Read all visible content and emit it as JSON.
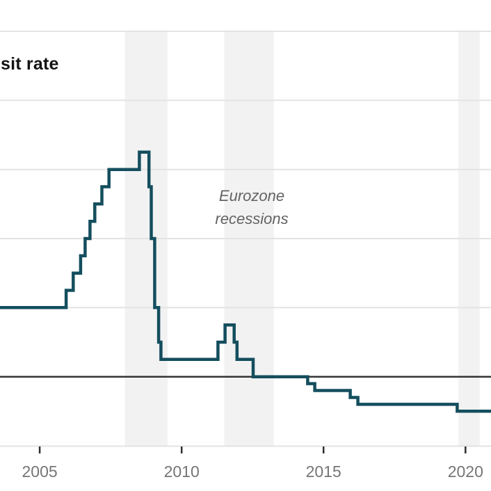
{
  "header": {
    "title_visible": "sit rate"
  },
  "colors": {
    "line": "#144e5e",
    "recession_band": "#f2f2f2",
    "gridline": "#e3e3e3",
    "zero_line": "#333333",
    "axis_line": "#e3e3e3",
    "tick": "#2e2e2e",
    "tick_label": "#757575",
    "annotation_text": "#636363",
    "title_text": "#121212",
    "background": "#ffffff"
  },
  "chart_data": {
    "type": "line",
    "line_style": "step-after",
    "unit": "percent",
    "x_axis": {
      "range": [
        2003.6,
        2020.9
      ],
      "ticks": [
        2005,
        2010,
        2015,
        2020
      ],
      "tick_labels": [
        "2005",
        "2010",
        "2015",
        "2020"
      ]
    },
    "y_axis": {
      "range": [
        -1.0,
        5.0
      ],
      "gridlines": [
        1,
        2,
        3,
        4,
        5
      ],
      "zero_line": 0,
      "grid": true
    },
    "series": [
      {
        "name": "deposit rate",
        "points": [
          [
            2003.6,
            1.0
          ],
          [
            2005.93,
            1.25
          ],
          [
            2006.18,
            1.5
          ],
          [
            2006.44,
            1.75
          ],
          [
            2006.6,
            2.0
          ],
          [
            2006.77,
            2.25
          ],
          [
            2006.94,
            2.5
          ],
          [
            2007.19,
            2.75
          ],
          [
            2007.44,
            3.0
          ],
          [
            2008.51,
            3.25
          ],
          [
            2008.85,
            2.75
          ],
          [
            2008.93,
            2.0
          ],
          [
            2009.05,
            1.0
          ],
          [
            2009.19,
            0.5
          ],
          [
            2009.27,
            0.25
          ],
          [
            2011.28,
            0.5
          ],
          [
            2011.53,
            0.75
          ],
          [
            2011.85,
            0.5
          ],
          [
            2011.95,
            0.25
          ],
          [
            2012.52,
            0.0
          ],
          [
            2014.44,
            -0.1
          ],
          [
            2014.69,
            -0.2
          ],
          [
            2015.94,
            -0.3
          ],
          [
            2016.21,
            -0.4
          ],
          [
            2019.71,
            -0.5
          ],
          [
            2020.9,
            -0.5
          ]
        ]
      }
    ],
    "recession_bands": [
      [
        2008.0,
        2009.5
      ],
      [
        2011.5,
        2013.25
      ],
      [
        2019.75,
        2020.5
      ]
    ],
    "annotation": {
      "line1": "Eurozone",
      "line2": "recessions",
      "x": 2012.5,
      "y_pct": 2.45
    },
    "legend": "none"
  }
}
